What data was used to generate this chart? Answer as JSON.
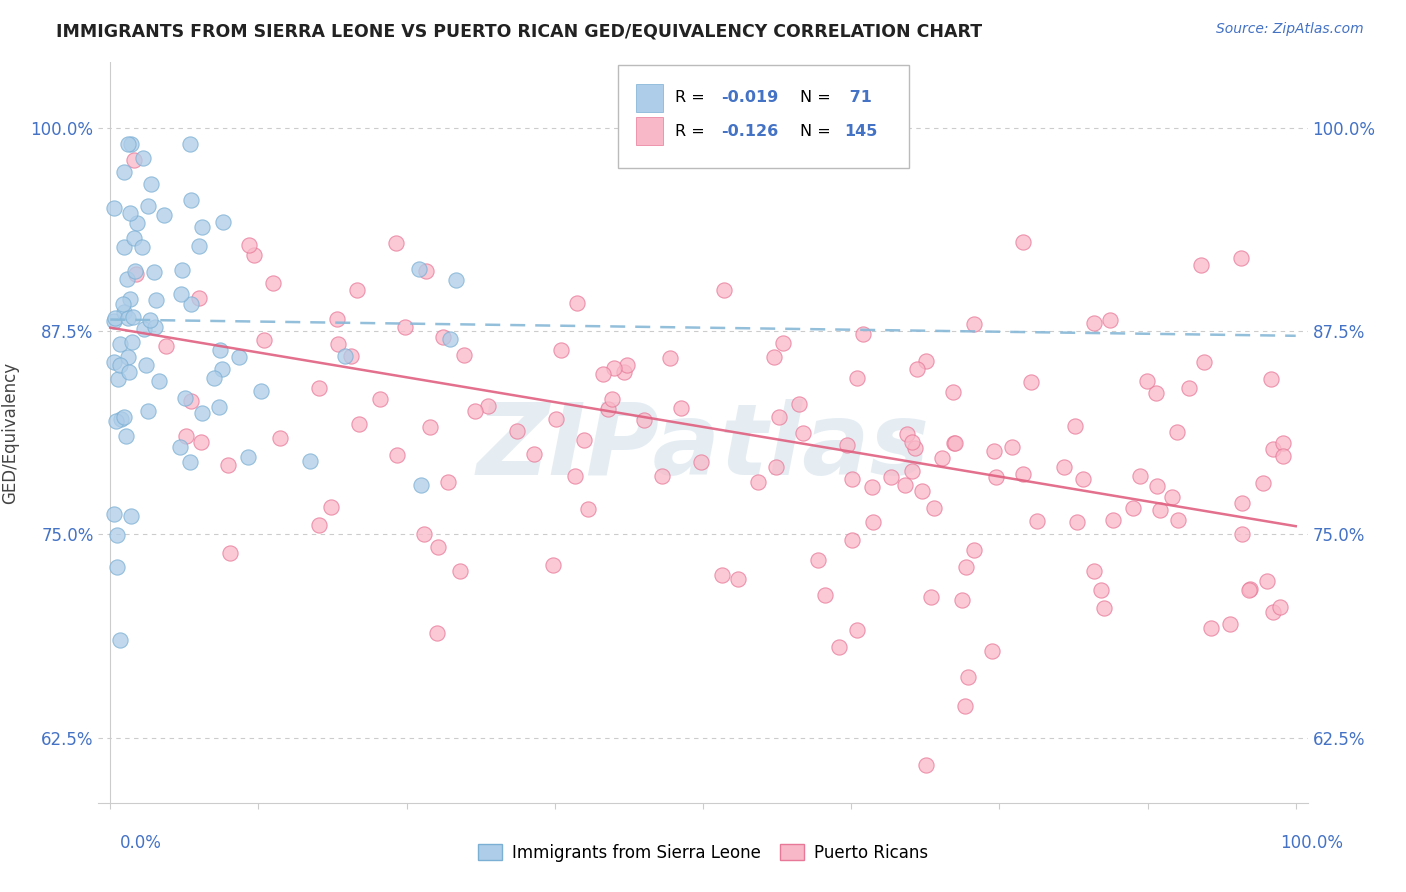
{
  "title": "IMMIGRANTS FROM SIERRA LEONE VS PUERTO RICAN GED/EQUIVALENCY CORRELATION CHART",
  "source_text": "Source: ZipAtlas.com",
  "ylabel": "GED/Equivalency",
  "ytick_labels": [
    "62.5%",
    "75.0%",
    "87.5%",
    "100.0%"
  ],
  "ytick_values": [
    0.625,
    0.75,
    0.875,
    1.0
  ],
  "xlim": [
    -0.01,
    1.01
  ],
  "ylim": [
    0.585,
    1.04
  ],
  "legend_r1_label": "R = ",
  "legend_r1_val": "-0.019",
  "legend_n1_label": "N = ",
  "legend_n1_val": " 71",
  "legend_r2_label": "R = ",
  "legend_r2_val": "-0.126",
  "legend_n2_label": "N = ",
  "legend_n2_val": "145",
  "color_blue_fill": "#aecde8",
  "color_blue_edge": "#7bafd4",
  "color_pink_fill": "#f9b8c8",
  "color_pink_edge": "#e87898",
  "color_trend_blue": "#88b8d8",
  "color_trend_pink": "#e06080",
  "watermark_text": "ZIPatlas",
  "watermark_color": "#ccdde8",
  "axis_label_color": "#4472c4",
  "grid_color": "#cccccc",
  "title_color": "#222222",
  "source_color": "#4472c4",
  "blue_trend_start": 0.882,
  "blue_trend_end": 0.872,
  "pink_trend_start": 0.877,
  "pink_trend_end": 0.755
}
